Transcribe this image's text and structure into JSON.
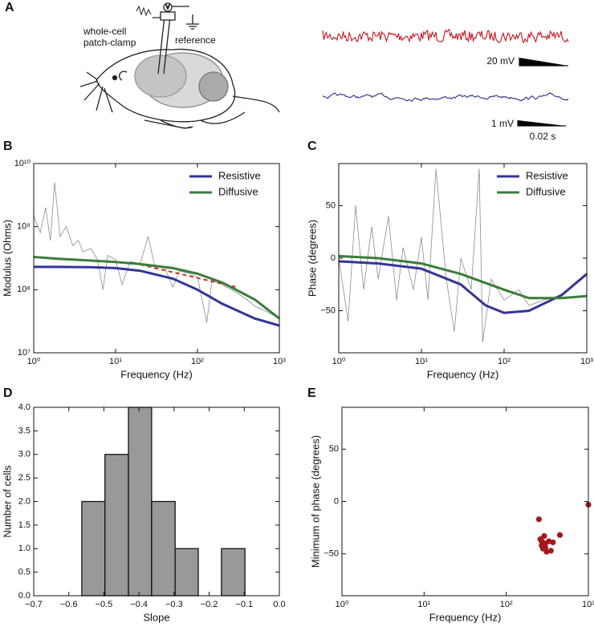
{
  "figure": {
    "panel_labels": [
      "A",
      "B",
      "C",
      "D",
      "E"
    ],
    "diagram": {
      "electrode": "whole-cell",
      "electrode_line2": "patch-clamp",
      "reference": "reference",
      "meter": "V"
    },
    "traces": {
      "red_scale": "20 mV",
      "blue_scale": "1 mV",
      "time_scale": "0.02 s"
    }
  },
  "chart_data": [
    {
      "type": "line",
      "xlabel": "Frequency (Hz)",
      "ylabel": "Modulus (Ohms)",
      "log_x": true,
      "log_y": true,
      "xlim": [
        1,
        1000
      ],
      "ylim": [
        10000000,
        10000000000
      ],
      "xticks": [
        {
          "value": 1,
          "label": "10⁰"
        },
        {
          "value": 10,
          "label": "10¹"
        },
        {
          "value": 100,
          "label": "10²"
        },
        {
          "value": 1000,
          "label": "10³"
        }
      ],
      "yticks": [
        {
          "value": 10000000,
          "label": "10⁷"
        },
        {
          "value": 100000000,
          "label": "10⁸"
        },
        {
          "value": 1000000000,
          "label": "10⁹"
        },
        {
          "value": 10000000000,
          "label": "10¹⁰"
        }
      ],
      "legend": "upper right",
      "series": [
        {
          "color": "#8c8c8c",
          "x": [
            1,
            1.2,
            1.4,
            1.6,
            1.8,
            2.1,
            2.5,
            3,
            3.5,
            4,
            5,
            6,
            7,
            8,
            10,
            12,
            15,
            20,
            25,
            30,
            40,
            50,
            60,
            80,
            100,
            130,
            150,
            200,
            300,
            400,
            500,
            700,
            1000
          ],
          "values": [
            1500000000,
            800000000,
            2000000000,
            600000000,
            5000000000,
            700000000,
            1000000000,
            500000000,
            600000000,
            400000000,
            450000000,
            300000000,
            100000000,
            350000000,
            300000000,
            120000000,
            280000000,
            260000000,
            700000000,
            240000000,
            220000000,
            110000000,
            200000000,
            180000000,
            160000000,
            30000000,
            140000000,
            120000000,
            90000000,
            70000000,
            55000000,
            45000000,
            35000000
          ]
        },
        {
          "color": "#d42a2a",
          "dashed": true,
          "x": [
            20,
            300
          ],
          "values": [
            250000000,
            110000000
          ]
        },
        {
          "name": "Resistive",
          "color": "#34349a",
          "x": [
            1,
            2,
            5,
            10,
            20,
            50,
            100,
            200,
            500,
            1000
          ],
          "values": [
            230000000,
            230000000,
            228000000,
            220000000,
            200000000,
            150000000,
            100000000,
            60000000,
            35000000,
            27000000
          ]
        },
        {
          "name": "Diffusive",
          "color": "#3a7d3a",
          "x": [
            1,
            2,
            5,
            10,
            20,
            50,
            100,
            200,
            500,
            1000
          ],
          "values": [
            330000000,
            310000000,
            290000000,
            275000000,
            255000000,
            220000000,
            180000000,
            130000000,
            70000000,
            35000000
          ]
        }
      ]
    },
    {
      "type": "line",
      "xlabel": "Frequency (Hz)",
      "ylabel": "Phase (degrees)",
      "log_x": true,
      "xlim": [
        1,
        1000
      ],
      "ylim": [
        -90,
        90
      ],
      "xticks": [
        {
          "value": 1,
          "label": "10⁰"
        },
        {
          "value": 10,
          "label": "10¹"
        },
        {
          "value": 100,
          "label": "10²"
        },
        {
          "value": 1000,
          "label": "10³"
        }
      ],
      "yticks": [
        {
          "value": -50,
          "label": "−50"
        },
        0,
        50
      ],
      "legend": "upper right",
      "series": [
        {
          "color": "#8c8c8c",
          "x": [
            1,
            1.3,
            1.6,
            2,
            2.5,
            3,
            4,
            5,
            6,
            8,
            10,
            12,
            15,
            20,
            25,
            30,
            40,
            50,
            55,
            70,
            100,
            150,
            200,
            300,
            500,
            700,
            1000
          ],
          "values": [
            0,
            -60,
            50,
            -30,
            30,
            -20,
            40,
            -40,
            10,
            -30,
            20,
            -40,
            85,
            -20,
            -70,
            0,
            -30,
            85,
            -80,
            -20,
            -40,
            -30,
            -45,
            -40,
            -35,
            -25,
            -15
          ]
        },
        {
          "name": "Resistive",
          "color": "#34349a",
          "x": [
            1,
            3,
            10,
            30,
            60,
            100,
            200,
            500,
            1000
          ],
          "values": [
            -3,
            -5,
            -10,
            -25,
            -45,
            -52,
            -50,
            -35,
            -15
          ]
        },
        {
          "name": "Diffusive",
          "color": "#3a7d3a",
          "x": [
            1,
            3,
            10,
            30,
            100,
            200,
            500,
            1000
          ],
          "values": [
            2,
            0,
            -5,
            -15,
            -30,
            -38,
            -38,
            -36
          ]
        }
      ]
    },
    {
      "type": "histogram",
      "xlabel": "Slope",
      "ylabel": "Number of cells",
      "color": "#999999",
      "bins": [
        -0.563,
        -0.497,
        -0.43,
        -0.364,
        -0.297,
        -0.231,
        -0.165,
        -0.098
      ],
      "counts": [
        2,
        3,
        4,
        2,
        1,
        0,
        1
      ],
      "xlim": [
        -0.7,
        0
      ],
      "ylim": [
        0,
        4
      ],
      "xticks": [
        {
          "value": -0.7,
          "label": "−0.7"
        },
        {
          "value": -0.6,
          "label": "−0.6"
        },
        {
          "value": -0.5,
          "label": "−0.5"
        },
        {
          "value": -0.4,
          "label": "−0.4"
        },
        {
          "value": -0.3,
          "label": "−0.3"
        },
        {
          "value": -0.2,
          "label": "−0.2"
        },
        {
          "value": -0.1,
          "label": "−0.1"
        },
        {
          "value": 0,
          "label": "0.0"
        }
      ],
      "yticks": [
        {
          "value": 0,
          "label": "0.0"
        },
        0.5,
        {
          "value": 1,
          "label": "1.0"
        },
        1.5,
        {
          "value": 2,
          "label": "2.0"
        },
        2.5,
        {
          "value": 3,
          "label": "3.0"
        },
        3.5,
        {
          "value": 4,
          "label": "4.0"
        }
      ]
    },
    {
      "type": "scatter",
      "xlabel": "Frequency (Hz)",
      "ylabel": "Minimum of phase (degrees)",
      "log_x": true,
      "color": "#a31a1a",
      "x": [
        250,
        260,
        270,
        280,
        290,
        300,
        310,
        330,
        350,
        370,
        450,
        270,
        300,
        1000
      ],
      "values": [
        -17,
        -36,
        -42,
        -45,
        -33,
        -40,
        -48,
        -38,
        -47,
        -39,
        -32,
        -38,
        -44,
        -3
      ],
      "xlim": [
        1,
        1000
      ],
      "ylim": [
        -90,
        90
      ],
      "xticks": [
        {
          "value": 1,
          "label": "10⁰"
        },
        {
          "value": 10,
          "label": "10¹"
        },
        {
          "value": 100,
          "label": "10²"
        },
        {
          "value": 1000,
          "label": "10³"
        }
      ],
      "yticks": [
        {
          "value": -50,
          "label": "−50"
        },
        0,
        50
      ]
    }
  ]
}
